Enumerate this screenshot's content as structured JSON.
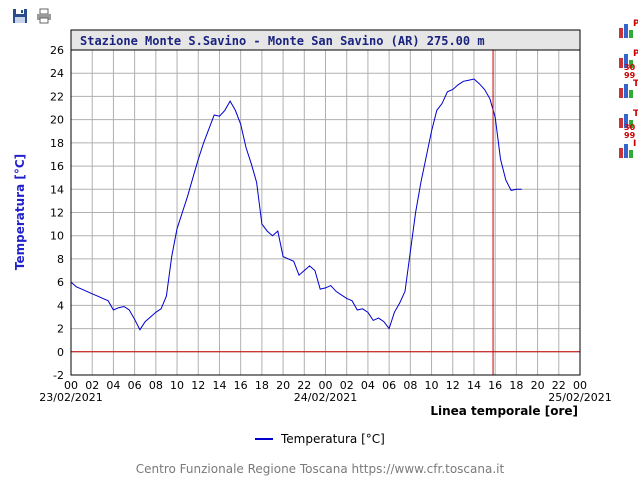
{
  "toolbar": {
    "save_icon": "floppy-disk-icon",
    "print_icon": "printer-icon"
  },
  "side_icons": [
    {
      "icon": "bar-chart-icon",
      "letter": "P",
      "sub": ""
    },
    {
      "icon": "bar-chart-icon",
      "letter": "P",
      "sub": "30\n99"
    },
    {
      "icon": "bar-chart-icon",
      "letter": "T",
      "sub": ""
    },
    {
      "icon": "bar-chart-icon",
      "letter": "T",
      "sub": "30\n99"
    },
    {
      "icon": "bar-chart-icon",
      "letter": "I",
      "sub": ""
    }
  ],
  "colors": {
    "series": "#0000cc",
    "title_bg": "#e6e6e6",
    "title_text": "#1a237e",
    "ylabel": "#2222cc",
    "marker": "#cc0000",
    "grid": "#b0b0b0"
  },
  "legend": {
    "label": "Temperatura [°C]"
  },
  "footer": {
    "text": "Centro Funzionale Regione Toscana https://www.cfr.toscana.it"
  },
  "chart_data": {
    "type": "line",
    "title": "Stazione Monte S.Savino - Monte San Savino (AR) 275.00 m",
    "ylabel": "Temperatura [°C]",
    "xlabel": "Linea temporale [ore]",
    "ylim": [
      -2,
      26
    ],
    "yticks": [
      -2,
      0,
      2,
      4,
      6,
      8,
      10,
      12,
      14,
      16,
      18,
      20,
      22,
      24,
      26
    ],
    "xlim": [
      0,
      48
    ],
    "xtick_labels": [
      "00",
      "02",
      "04",
      "06",
      "08",
      "10",
      "12",
      "14",
      "16",
      "18",
      "20",
      "22",
      "00",
      "02",
      "04",
      "06",
      "08",
      "10",
      "12",
      "14",
      "16",
      "18",
      "20",
      "22",
      "00"
    ],
    "date_labels": [
      {
        "hour": 0,
        "text": "23/02/2021"
      },
      {
        "hour": 24,
        "text": "24/02/2021"
      },
      {
        "hour": 48,
        "text": "25/02/2021"
      }
    ],
    "grid": true,
    "reference_line_y": 0,
    "current_time_marker_hour": 39.8,
    "series": [
      {
        "name": "Temperatura [°C]",
        "x": [
          0,
          0.5,
          1,
          1.5,
          2,
          2.5,
          3,
          3.5,
          4,
          4.5,
          5,
          5.5,
          6,
          6.5,
          7,
          7.5,
          8,
          8.5,
          9,
          9.5,
          10,
          10.5,
          11,
          11.5,
          12,
          12.5,
          13,
          13.5,
          14,
          14.5,
          15,
          15.5,
          16,
          16.5,
          17,
          17.5,
          18,
          18.5,
          19,
          19.5,
          20,
          20.5,
          21,
          21.5,
          22,
          22.5,
          23,
          23.5,
          24,
          24.5,
          25,
          25.5,
          26,
          26.5,
          27,
          27.5,
          28,
          28.5,
          29,
          29.5,
          30,
          30.5,
          31,
          31.5,
          32,
          32.5,
          33,
          33.5,
          34,
          34.5,
          35,
          35.5,
          36,
          36.5,
          37,
          37.5,
          38,
          38.5,
          39,
          39.5,
          40,
          40.5,
          41,
          41.5,
          42,
          42.5
        ],
        "y": [
          6.0,
          5.6,
          5.4,
          5.2,
          5.0,
          4.8,
          4.6,
          4.4,
          3.6,
          3.8,
          3.9,
          3.6,
          2.8,
          1.9,
          2.6,
          3.0,
          3.4,
          3.7,
          4.8,
          8.2,
          10.6,
          12.0,
          13.4,
          15.0,
          16.6,
          18.0,
          19.2,
          20.4,
          20.3,
          20.8,
          21.6,
          20.8,
          19.6,
          17.6,
          16.2,
          14.6,
          11.0,
          10.4,
          10.0,
          10.4,
          8.2,
          8.0,
          7.8,
          6.6,
          7.0,
          7.4,
          7.0,
          5.4,
          5.5,
          5.7,
          5.2,
          4.9,
          4.6,
          4.4,
          3.6,
          3.7,
          3.4,
          2.7,
          2.9,
          2.6,
          2.0,
          3.4,
          4.2,
          5.2,
          8.6,
          12.0,
          14.6,
          16.8,
          19.0,
          20.8,
          21.4,
          22.4,
          22.6,
          23.0,
          23.3,
          23.4,
          23.5,
          23.1,
          22.6,
          21.8,
          20.2,
          16.6,
          14.8,
          13.9,
          14.0,
          14.0
        ]
      }
    ]
  }
}
